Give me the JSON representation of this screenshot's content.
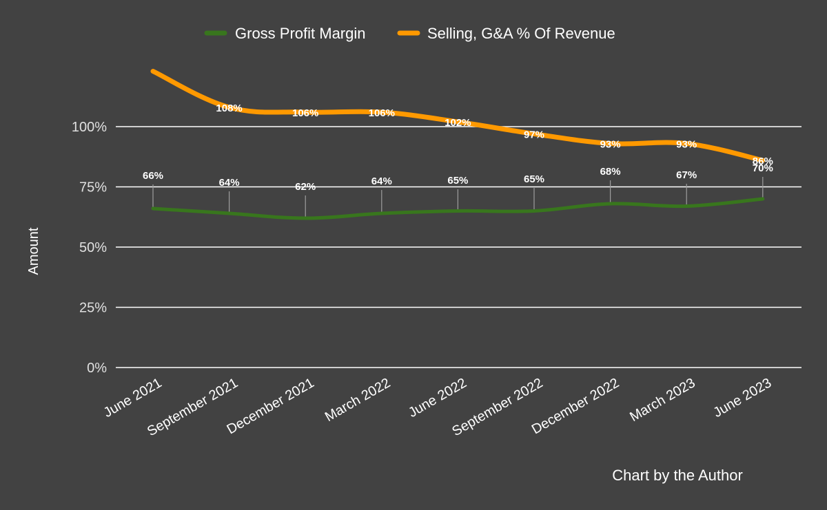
{
  "chart_data": {
    "type": "line",
    "categories": [
      "June 2021",
      "September 2021",
      "December 2021",
      "March 2022",
      "June 2022",
      "September 2022",
      "December 2022",
      "March 2023",
      "June 2023"
    ],
    "series": [
      {
        "name": "Gross Profit Margin",
        "color": "#38761d",
        "values": [
          66,
          64,
          62,
          64,
          65,
          65,
          68,
          67,
          70
        ],
        "labels": [
          "66%",
          "64%",
          "62%",
          "64%",
          "65%",
          "65%",
          "68%",
          "67%",
          "70%"
        ]
      },
      {
        "name": "Selling, G&A % Of Revenue",
        "color": "#ff9900",
        "values": [
          123,
          108,
          106,
          106,
          102,
          97,
          93,
          93,
          86
        ],
        "labels": [
          "",
          "108%",
          "106%",
          "106%",
          "102%",
          "97%",
          "93%",
          "93%",
          "86%"
        ]
      }
    ],
    "ylabel": "Amount",
    "ylim": [
      0,
      100
    ],
    "yticks": [
      0,
      25,
      50,
      75,
      100
    ],
    "ytick_labels": [
      "0%",
      "25%",
      "50%",
      "75%",
      "100%"
    ],
    "grid": true,
    "legend_position": "top"
  },
  "credit": "Chart by the Author",
  "colors": {
    "background": "#424242",
    "grid": "#ffffff"
  }
}
